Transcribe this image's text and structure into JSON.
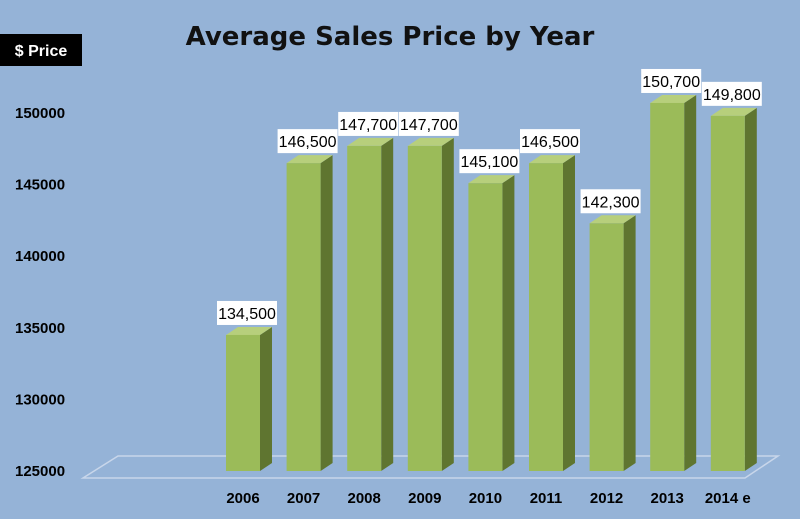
{
  "chart_data": {
    "type": "bar",
    "title": "Average Sales Price by Year",
    "ylabel": "$ Price",
    "xlabel": "",
    "categories": [
      "2006",
      "2007",
      "2008",
      "2009",
      "2010",
      "2011",
      "2012",
      "2013",
      "2014 e"
    ],
    "values": [
      134500,
      146500,
      147700,
      147700,
      145100,
      146500,
      142300,
      150700,
      149800
    ],
    "data_labels": [
      "134,500",
      "146,500",
      "147,700",
      "147,700",
      "145,100",
      "146,500",
      "142,300",
      "150,700",
      "149,800"
    ],
    "ylim": [
      125000,
      152000
    ],
    "yticks": [
      125000,
      130000,
      135000,
      140000,
      145000,
      150000
    ],
    "ytick_labels": [
      "125000",
      "130000",
      "135000",
      "140000",
      "145000",
      "150000"
    ],
    "style": "3d",
    "grid": false,
    "legend": "none",
    "colors": {
      "background": "#95b3d7",
      "bar_front": "#9bbb59",
      "bar_side": "#5f7530",
      "bar_top": "#b7cf7c",
      "floor": "#95b3d7",
      "floor_line": "#c8d6ea",
      "label_box": "#ffffff",
      "ylabel_box": "#000000"
    }
  }
}
